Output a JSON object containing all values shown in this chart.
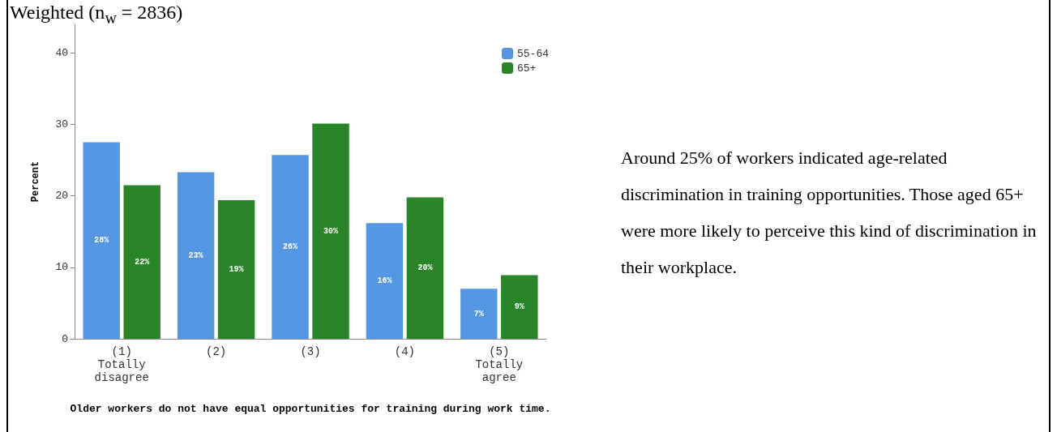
{
  "chart_data": {
    "type": "bar",
    "title": "Weighted (n$_{w}$ = 2836)",
    "categories": [
      "(1)\nTotally\ndisagree",
      "(2)",
      "(3)",
      "(4)",
      "(5)\nTotally\nagree"
    ],
    "series": [
      {
        "name": "55-64",
        "color": "#5596e3",
        "values": [
          27.5,
          23.3,
          25.7,
          16.2,
          7.0
        ],
        "value_labels": [
          "28%",
          "23%",
          "26%",
          "16%",
          "7%"
        ]
      },
      {
        "name": "65+",
        "color": "#2a8529",
        "values": [
          21.5,
          19.4,
          30.1,
          19.8,
          8.9
        ],
        "value_labels": [
          "22%",
          "19%",
          "30%",
          "20%",
          "9%"
        ]
      }
    ],
    "xlabel": "Older workers do not have equal opportunities for training during work time.",
    "ylabel": "Percent",
    "ylim": [
      0,
      44
    ],
    "yticks": [
      0,
      10,
      20,
      30,
      40
    ],
    "grid": false,
    "legend": "top right",
    "annotations": [
      "Around 25% of workers indicated age-related discrimination in training opportunities. Those aged 65+ were more likely to perceive this kind of discrimination in their workplace."
    ]
  }
}
